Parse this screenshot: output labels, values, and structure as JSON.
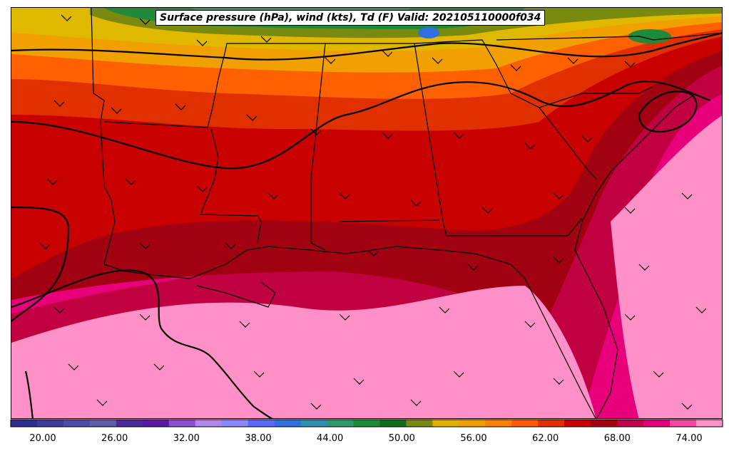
{
  "title": "Surface pressure (hPa), wind (kts), Td (F) Valid: 202105110000f034",
  "colorbar": {
    "ticks": [
      "20.00",
      "26.00",
      "32.00",
      "38.00",
      "44.00",
      "50.00",
      "56.00",
      "62.00",
      "68.00",
      "74.00"
    ],
    "colors": [
      "#2b2f8f",
      "#3a3e9a",
      "#4a4ea5",
      "#5a5fb0",
      "#4a2a9a",
      "#5a1aa8",
      "#8a4fd0",
      "#b088ec",
      "#8888ff",
      "#5a6cff",
      "#2f6fe0",
      "#2f8fb0",
      "#2e9a6a",
      "#1e8a3a",
      "#0e6e1a",
      "#7a8a10",
      "#e0b000",
      "#f0a000",
      "#ff8000",
      "#ff5a00",
      "#e03000",
      "#c80000",
      "#a00010",
      "#c0004a",
      "#e0007a",
      "#f04aa0",
      "#ff90c8"
    ]
  }
}
